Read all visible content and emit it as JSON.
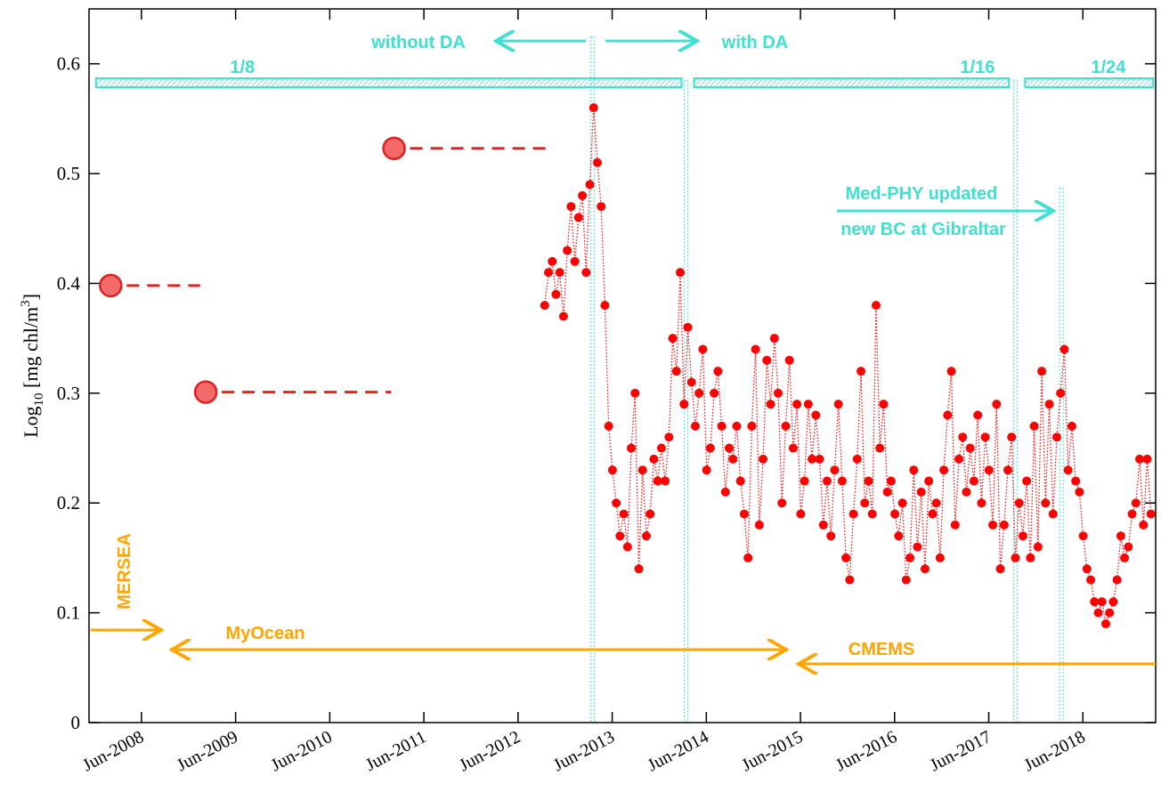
{
  "chart_data": {
    "type": "line",
    "ylabel": {
      "base": "Log",
      "sub": "10",
      "mid": " [mg chl/m",
      "sup": "3",
      "end": "]"
    },
    "xlim": [
      2007.86,
      2019.19
    ],
    "xticks": [
      {
        "value": 2008.417,
        "label": "Jun-2008"
      },
      {
        "value": 2009.417,
        "label": "Jun-2009"
      },
      {
        "value": 2010.417,
        "label": "Jun-2010"
      },
      {
        "value": 2011.417,
        "label": "Jun-2011"
      },
      {
        "value": 2012.417,
        "label": "Jun-2012"
      },
      {
        "value": 2013.417,
        "label": "Jun-2013"
      },
      {
        "value": 2014.417,
        "label": "Jun-2014"
      },
      {
        "value": 2015.417,
        "label": "Jun-2015"
      },
      {
        "value": 2016.417,
        "label": "Jun-2016"
      },
      {
        "value": 2017.417,
        "label": "Jun-2017"
      },
      {
        "value": 2018.417,
        "label": "Jun-2018"
      }
    ],
    "ylim": [
      0,
      0.65
    ],
    "yticks": [
      0,
      0.1,
      0.2,
      0.3,
      0.4,
      0.5,
      0.6
    ],
    "color": "#ff0000",
    "x": [
      2012.7,
      2012.74,
      2012.78,
      2012.82,
      2012.86,
      2012.9,
      2012.94,
      2012.98,
      2013.02,
      2013.06,
      2013.1,
      2013.14,
      2013.18,
      2013.22,
      2013.26,
      2013.3,
      2013.34,
      2013.38,
      2013.42,
      2013.46,
      2013.5,
      2013.54,
      2013.58,
      2013.62,
      2013.66,
      2013.7,
      2013.74,
      2013.78,
      2013.82,
      2013.86,
      2013.9,
      2013.94,
      2013.98,
      2014.02,
      2014.06,
      2014.1,
      2014.14,
      2014.18,
      2014.22,
      2014.26,
      2014.3,
      2014.34,
      2014.38,
      2014.42,
      2014.46,
      2014.5,
      2014.54,
      2014.58,
      2014.62,
      2014.66,
      2014.7,
      2014.74,
      2014.78,
      2014.82,
      2014.86,
      2014.9,
      2014.94,
      2014.98,
      2015.02,
      2015.06,
      2015.1,
      2015.14,
      2015.18,
      2015.22,
      2015.26,
      2015.3,
      2015.34,
      2015.38,
      2015.42,
      2015.46,
      2015.5,
      2015.54,
      2015.58,
      2015.62,
      2015.66,
      2015.7,
      2015.74,
      2015.78,
      2015.82,
      2015.86,
      2015.9,
      2015.94,
      2015.98,
      2016.02,
      2016.06,
      2016.1,
      2016.14,
      2016.18,
      2016.22,
      2016.26,
      2016.3,
      2016.34,
      2016.38,
      2016.42,
      2016.46,
      2016.5,
      2016.54,
      2016.58,
      2016.62,
      2016.66,
      2016.7,
      2016.74,
      2016.78,
      2016.82,
      2016.86,
      2016.9,
      2016.94,
      2016.98,
      2017.02,
      2017.06,
      2017.1,
      2017.14,
      2017.18,
      2017.22,
      2017.26,
      2017.3,
      2017.34,
      2017.38,
      2017.42,
      2017.46,
      2017.5,
      2017.54,
      2017.58,
      2017.62,
      2017.66,
      2017.7,
      2017.74,
      2017.78,
      2017.82,
      2017.86,
      2017.9,
      2017.94,
      2017.98,
      2018.02,
      2018.06,
      2018.1,
      2018.14,
      2018.18,
      2018.22,
      2018.26,
      2018.3,
      2018.34,
      2018.38,
      2018.42,
      2018.46,
      2018.5,
      2018.54,
      2018.58,
      2018.62,
      2018.66,
      2018.7,
      2018.74,
      2018.78,
      2018.82,
      2018.86,
      2018.9,
      2018.94,
      2018.98,
      2019.02,
      2019.06,
      2019.1,
      2019.14
    ],
    "values": [
      0.38,
      0.41,
      0.42,
      0.39,
      0.41,
      0.37,
      0.43,
      0.47,
      0.42,
      0.46,
      0.48,
      0.41,
      0.49,
      0.56,
      0.51,
      0.47,
      0.38,
      0.27,
      0.23,
      0.2,
      0.17,
      0.19,
      0.16,
      0.25,
      0.3,
      0.14,
      0.23,
      0.17,
      0.19,
      0.24,
      0.22,
      0.25,
      0.22,
      0.26,
      0.35,
      0.32,
      0.41,
      0.29,
      0.36,
      0.31,
      0.27,
      0.3,
      0.34,
      0.23,
      0.25,
      0.3,
      0.32,
      0.27,
      0.21,
      0.25,
      0.24,
      0.27,
      0.22,
      0.19,
      0.15,
      0.27,
      0.34,
      0.18,
      0.24,
      0.33,
      0.29,
      0.35,
      0.3,
      0.2,
      0.27,
      0.33,
      0.25,
      0.29,
      0.19,
      0.22,
      0.29,
      0.24,
      0.28,
      0.24,
      0.18,
      0.22,
      0.17,
      0.23,
      0.29,
      0.22,
      0.15,
      0.13,
      0.19,
      0.24,
      0.32,
      0.2,
      0.22,
      0.19,
      0.38,
      0.25,
      0.29,
      0.21,
      0.22,
      0.19,
      0.17,
      0.2,
      0.13,
      0.15,
      0.23,
      0.16,
      0.21,
      0.14,
      0.22,
      0.19,
      0.2,
      0.15,
      0.23,
      0.28,
      0.32,
      0.18,
      0.24,
      0.26,
      0.21,
      0.25,
      0.22,
      0.28,
      0.2,
      0.26,
      0.23,
      0.18,
      0.29,
      0.14,
      0.18,
      0.23,
      0.26,
      0.15,
      0.2,
      0.17,
      0.22,
      0.15,
      0.27,
      0.16,
      0.32,
      0.2,
      0.29,
      0.19,
      0.26,
      0.3,
      0.34,
      0.23,
      0.27,
      0.22,
      0.21,
      0.17,
      0.14,
      0.13,
      0.11,
      0.1,
      0.11,
      0.09,
      0.1,
      0.11,
      0.13,
      0.17,
      0.15,
      0.16,
      0.19,
      0.2,
      0.24,
      0.18,
      0.24,
      0.19
    ],
    "segments": [
      {
        "x": [
          2008.09,
          2009.04
        ],
        "value": 0.398
      },
      {
        "x": [
          2009.1,
          2011.07
        ],
        "value": 0.301
      },
      {
        "x": [
          2011.1,
          2012.75
        ],
        "value": 0.523
      }
    ],
    "resolution_bars": [
      {
        "label": "1/8",
        "x": [
          2007.935,
          2014.154
        ]
      },
      {
        "label": "1/16",
        "x": [
          2014.286,
          2017.632
        ]
      },
      {
        "label": "1/24",
        "x": [
          2017.803,
          2019.164
        ]
      }
    ],
    "event_lines": [
      {
        "x": 2013.21,
        "top": 0.625
      },
      {
        "x": 2014.2,
        "top": 0.585
      },
      {
        "x": 2017.7,
        "top": 0.585
      },
      {
        "x": 2018.19,
        "top": 0.487
      }
    ],
    "annotations": {
      "without_da": "without DA",
      "with_da": "with DA",
      "medphy": "Med-PHY updated",
      "gibraltar": "new BC at Gibraltar",
      "mersea": "MERSEA",
      "myocean": "MyOcean",
      "cmems": "CMEMS"
    }
  }
}
